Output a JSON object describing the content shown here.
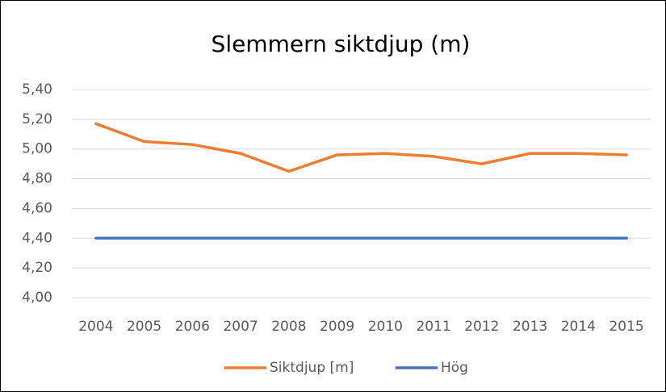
{
  "chart_data": {
    "type": "line",
    "title": "Slemmern siktdjup (m)",
    "categories": [
      "2004",
      "2005",
      "2006",
      "2007",
      "2008",
      "2009",
      "2010",
      "2011",
      "2012",
      "2013",
      "2014",
      "2015"
    ],
    "series": [
      {
        "name": "Siktdjup [m]",
        "color": "#ed7d31",
        "values": [
          5.17,
          5.05,
          5.03,
          4.97,
          4.85,
          4.96,
          4.97,
          4.95,
          4.9,
          4.97,
          4.97,
          4.96
        ]
      },
      {
        "name": "Hög",
        "color": "#4472c4",
        "values": [
          4.4,
          4.4,
          4.4,
          4.4,
          4.4,
          4.4,
          4.4,
          4.4,
          4.4,
          4.4,
          4.4,
          4.4
        ]
      }
    ],
    "ylim": [
      4.0,
      5.4
    ],
    "yticks": [
      {
        "value": 4.0,
        "label": "4,00"
      },
      {
        "value": 4.2,
        "label": "4,20"
      },
      {
        "value": 4.4,
        "label": "4,40"
      },
      {
        "value": 4.6,
        "label": "4,60"
      },
      {
        "value": 4.8,
        "label": "4,80"
      },
      {
        "value": 5.0,
        "label": "5,00"
      },
      {
        "value": 5.2,
        "label": "5,20"
      },
      {
        "value": 5.4,
        "label": "5,40"
      }
    ],
    "grid": true,
    "legend": "bottom"
  }
}
